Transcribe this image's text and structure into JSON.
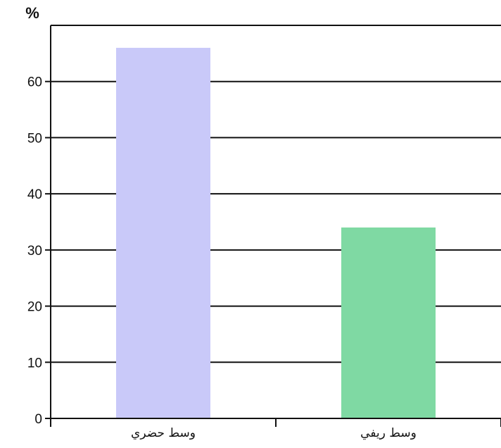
{
  "chart_data": {
    "type": "bar",
    "title": "",
    "unit_label": "%",
    "xlabel": "",
    "ylabel": "%",
    "categories": [
      "وسط حضري",
      "وسط ريفي"
    ],
    "values": [
      66,
      34
    ],
    "ylim": [
      0,
      70
    ],
    "yticks": [
      0,
      10,
      20,
      30,
      40,
      50,
      60
    ],
    "grid": true,
    "colors": [
      "#c9c9f9",
      "#7fd9a3"
    ]
  }
}
